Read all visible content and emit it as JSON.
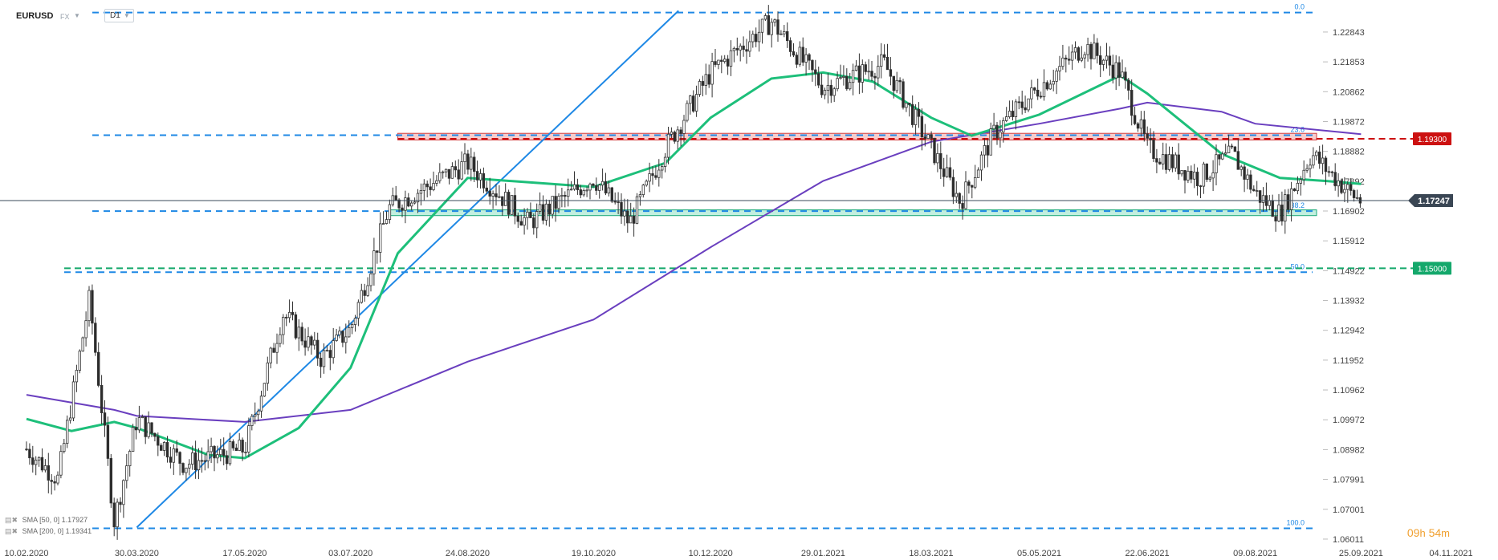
{
  "header": {
    "symbol": "EURUSD",
    "instrument_type": "FX",
    "timeframe": "D1"
  },
  "indicators": [
    {
      "label": "SMA [50, 0]",
      "value": "1.17927",
      "color": "#1dbf7a"
    },
    {
      "label": "SMA [200, 0]",
      "value": "1.19341",
      "color": "#6a3fbf"
    }
  ],
  "timer": {
    "hours": "09",
    "h_unit": "h",
    "minutes": "54",
    "m_unit": "m"
  },
  "chart_data": {
    "type": "candlestick",
    "title": "EURUSD",
    "y_ticks": [
      "1.22843",
      "1.21853",
      "1.20862",
      "1.19872",
      "1.18882",
      "1.17892",
      "1.16902",
      "1.15912",
      "1.14922",
      "1.13932",
      "1.12942",
      "1.11952",
      "1.10962",
      "1.09972",
      "1.08982",
      "1.07991",
      "1.07001",
      "1.06011"
    ],
    "x_ticks": [
      "10.02.2020",
      "30.03.2020",
      "17.05.2020",
      "03.07.2020",
      "24.08.2020",
      "19.10.2020",
      "10.12.2020",
      "29.01.2021",
      "18.03.2021",
      "05.05.2021",
      "22.06.2021",
      "09.08.2021",
      "25.09.2021",
      "04.11.2021"
    ],
    "ylim": [
      1.0601,
      1.2364
    ],
    "current_price": "1.17247",
    "price_tags": [
      {
        "label": "1.19300",
        "value": 1.193,
        "color": "#cc1111"
      },
      {
        "label": "1.15000",
        "value": 1.15,
        "color": "#14a86b"
      }
    ],
    "fibonacci_levels": [
      {
        "label": "0.0",
        "value": 1.2349
      },
      {
        "label": "23.6",
        "value": 1.1942
      },
      {
        "label": "38.2",
        "value": 1.169
      },
      {
        "label": "50.0",
        "value": 1.1487
      },
      {
        "label": "100.0",
        "value": 1.0637
      }
    ],
    "zones": [
      {
        "name": "resistance",
        "from": 1.1926,
        "to": 1.1948,
        "color": "#f4b8b8"
      },
      {
        "name": "support",
        "from": 1.1675,
        "to": 1.1694,
        "color": "#a8e8d2"
      }
    ],
    "trendline": {
      "from": [
        "30.03.2020",
        1.064
      ],
      "to": [
        "10.12.2020",
        1.2355
      ]
    },
    "price_path": [
      [
        "10.02.2020",
        1.09
      ],
      [
        "24.02.2020",
        1.08
      ],
      [
        "09.03.2020",
        1.14
      ],
      [
        "20.03.2020",
        1.066
      ],
      [
        "30.03.2020",
        1.1
      ],
      [
        "20.04.2020",
        1.085
      ],
      [
        "17.05.2020",
        1.09
      ],
      [
        "03.06.2020",
        1.135
      ],
      [
        "20.06.2020",
        1.12
      ],
      [
        "03.07.2020",
        1.13
      ],
      [
        "20.07.2020",
        1.17
      ],
      [
        "24.08.2020",
        1.185
      ],
      [
        "20.09.2020",
        1.165
      ],
      [
        "19.10.2020",
        1.18
      ],
      [
        "04.11.2020",
        1.165
      ],
      [
        "20.11.2020",
        1.19
      ],
      [
        "10.12.2020",
        1.215
      ],
      [
        "06.01.2021",
        1.232
      ],
      [
        "29.01.2021",
        1.21
      ],
      [
        "25.02.2021",
        1.218
      ],
      [
        "18.03.2021",
        1.19
      ],
      [
        "31.03.2021",
        1.172
      ],
      [
        "15.04.2021",
        1.195
      ],
      [
        "05.05.2021",
        1.21
      ],
      [
        "25.05.2021",
        1.224
      ],
      [
        "10.06.2021",
        1.215
      ],
      [
        "22.06.2021",
        1.19
      ],
      [
        "15.07.2021",
        1.18
      ],
      [
        "30.07.2021",
        1.188
      ],
      [
        "09.08.2021",
        1.175
      ],
      [
        "20.08.2021",
        1.168
      ],
      [
        "03.09.2021",
        1.188
      ],
      [
        "20.09.2021",
        1.175
      ],
      [
        "25.09.2021",
        1.1724
      ]
    ],
    "sma50": [
      [
        "10.02.2020",
        1.1
      ],
      [
        "01.03.2020",
        1.096
      ],
      [
        "20.03.2020",
        1.099
      ],
      [
        "30.03.2020",
        1.097
      ],
      [
        "01.05.2020",
        1.088
      ],
      [
        "17.05.2020",
        1.087
      ],
      [
        "10.06.2020",
        1.097
      ],
      [
        "03.07.2020",
        1.117
      ],
      [
        "24.07.2020",
        1.155
      ],
      [
        "24.08.2020",
        1.18
      ],
      [
        "19.10.2020",
        1.177
      ],
      [
        "20.11.2020",
        1.185
      ],
      [
        "10.12.2020",
        1.2
      ],
      [
        "06.01.2021",
        1.213
      ],
      [
        "29.01.2021",
        1.215
      ],
      [
        "20.02.2021",
        1.212
      ],
      [
        "18.03.2021",
        1.2
      ],
      [
        "05.04.2021",
        1.194
      ],
      [
        "05.05.2021",
        1.201
      ],
      [
        "10.06.2021",
        1.214
      ],
      [
        "22.06.2021",
        1.208
      ],
      [
        "25.07.2021",
        1.188
      ],
      [
        "20.08.2021",
        1.18
      ],
      [
        "09.09.2021",
        1.179
      ],
      [
        "25.09.2021",
        1.178
      ]
    ],
    "sma200": [
      [
        "10.02.2020",
        1.108
      ],
      [
        "20.03.2020",
        1.103
      ],
      [
        "30.03.2020",
        1.101
      ],
      [
        "17.05.2020",
        1.099
      ],
      [
        "03.07.2020",
        1.103
      ],
      [
        "24.08.2020",
        1.119
      ],
      [
        "19.10.2020",
        1.133
      ],
      [
        "10.12.2020",
        1.157
      ],
      [
        "29.01.2021",
        1.179
      ],
      [
        "18.03.2021",
        1.192
      ],
      [
        "05.05.2021",
        1.198
      ],
      [
        "10.06.2021",
        1.203
      ],
      [
        "22.06.2021",
        1.205
      ],
      [
        "25.07.2021",
        1.202
      ],
      [
        "09.08.2021",
        1.198
      ],
      [
        "25.09.2021",
        1.1945
      ]
    ]
  }
}
